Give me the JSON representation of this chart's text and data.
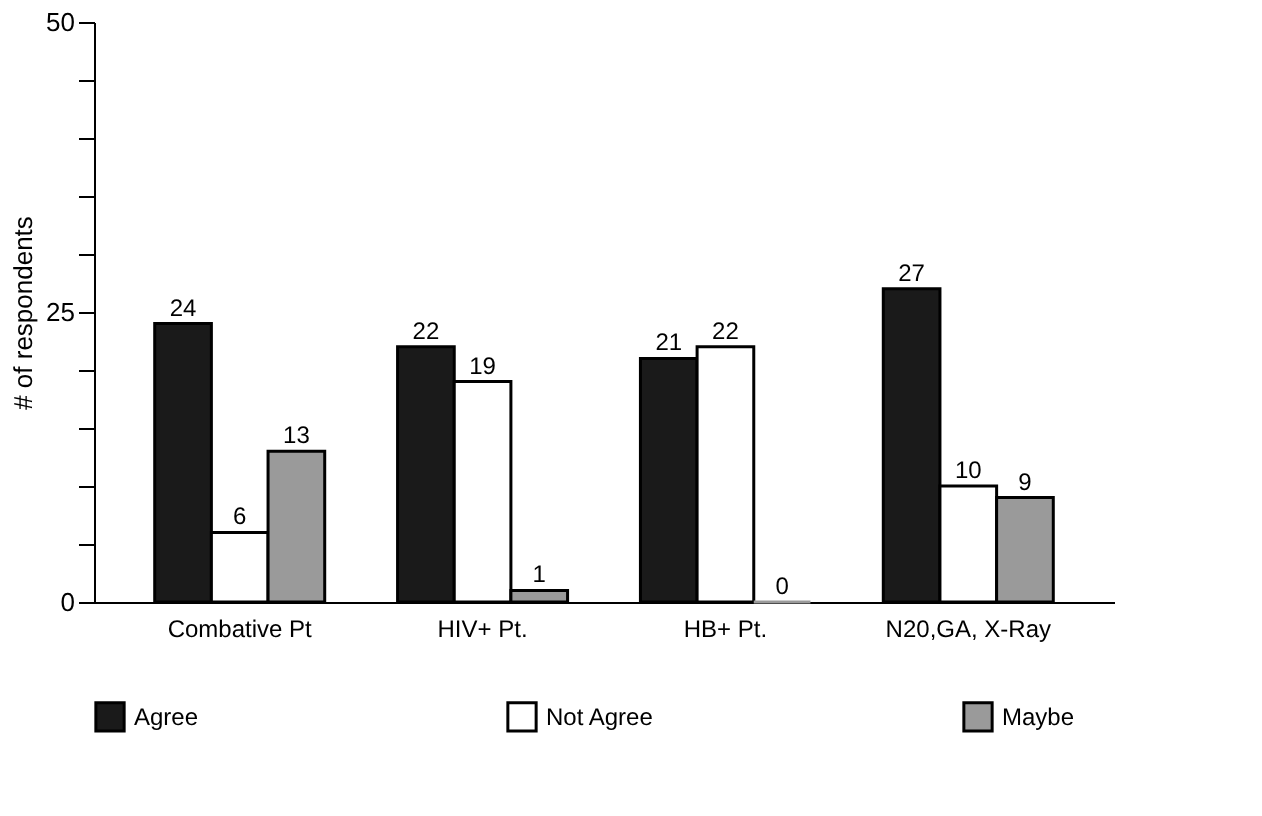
{
  "chart_data": {
    "type": "bar",
    "ylabel": "# of respondents",
    "categories": [
      "Combative Pt",
      "HIV+ Pt.",
      "HB+ Pt.",
      "N20,GA, X-Ray"
    ],
    "series": [
      {
        "name": "Agree",
        "color": "#1a1a1a",
        "values": [
          24,
          22,
          21,
          27
        ]
      },
      {
        "name": "Not Agree",
        "color": "#ffffff",
        "values": [
          6,
          19,
          22,
          10
        ]
      },
      {
        "name": "Maybe",
        "color": "#9a9a9a",
        "values": [
          13,
          1,
          0,
          9
        ]
      }
    ],
    "ylim": [
      0,
      50
    ],
    "yticks": [
      0,
      {
        "value": 5,
        "label": null
      },
      {
        "value": 10,
        "label": null
      },
      {
        "value": 15,
        "label": null
      },
      {
        "value": 20,
        "label": null
      },
      25,
      {
        "value": 30,
        "label": null
      },
      {
        "value": 35,
        "label": null
      },
      {
        "value": 40,
        "label": null
      },
      {
        "value": 45,
        "label": null
      },
      50
    ],
    "data_labels": true,
    "grid": false,
    "legend": "bottom"
  }
}
